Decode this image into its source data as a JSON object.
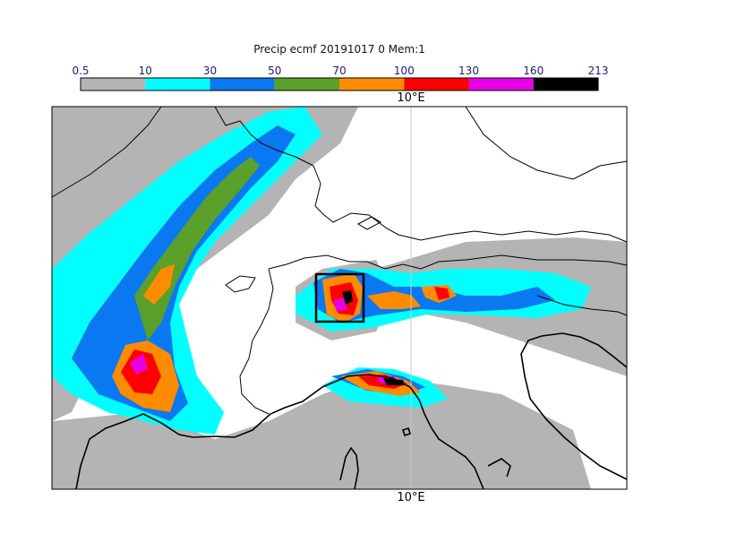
{
  "title": "Precip ecmf 20191017 0 Mem:1",
  "colorbar": {
    "thresholds": [
      "0.5",
      "10",
      "30",
      "50",
      "70",
      "100",
      "130",
      "160",
      "213"
    ],
    "colors": [
      "#b4b4b4",
      "#00ffff",
      "#0a78f0",
      "#5aa02a",
      "#ff8c00",
      "#ff0000",
      "#e600e6",
      "#000000"
    ]
  },
  "axis": {
    "top_label": "10°E",
    "bottom_label": "10°E"
  },
  "map": {
    "background": "#ffffff",
    "border_color": "#000000",
    "gridline_color": "#c8c8c8"
  }
}
